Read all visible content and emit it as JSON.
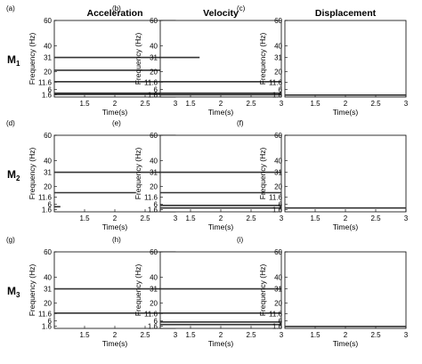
{
  "columns": [
    "Acceleration",
    "Velocity",
    "Displacement"
  ],
  "rows": [
    {
      "label": "M",
      "sub": "1"
    },
    {
      "label": "M",
      "sub": "2"
    },
    {
      "label": "M",
      "sub": "3"
    }
  ],
  "panel_letters": [
    "(a)",
    "(b)",
    "(c)",
    "(d)",
    "(e)",
    "(f)",
    "(g)",
    "(h)",
    "(i)"
  ],
  "axes": {
    "xlabel": "Time(s)",
    "ylabel": "Frequency (Hz)",
    "xlim": [
      1.0,
      3.0
    ],
    "ylim": [
      0,
      60
    ],
    "xticks": [
      1.5,
      2,
      2.5,
      3
    ],
    "xtick_labels": [
      "1.5",
      "2",
      "2.5",
      "3"
    ],
    "yticks": [
      1.6,
      6,
      11.6,
      20,
      31,
      40,
      60
    ],
    "ytick_labels": [
      "1.6",
      "6",
      "11.6",
      "20",
      "31",
      "40",
      "60"
    ]
  },
  "colors": {
    "line": "#333333",
    "axis": "#000000",
    "text": "#000000"
  },
  "chart_data": [
    {
      "panel": "(a)",
      "type": "line",
      "title": "Acceleration",
      "xlabel": "Time(s)",
      "ylabel": "Frequency (Hz)",
      "xlim": [
        1,
        3
      ],
      "ylim": [
        0,
        60
      ],
      "series": [
        {
          "values": [
            {
              "x": 1.0,
              "y": 31
            },
            {
              "x": 3.0,
              "y": 31
            }
          ]
        },
        {
          "values": [
            {
              "x": 1.0,
              "y": 21
            },
            {
              "x": 3.0,
              "y": 21
            }
          ]
        },
        {
          "values": [
            {
              "x": 1.0,
              "y": 12
            },
            {
              "x": 3.0,
              "y": 12
            }
          ]
        },
        {
          "values": [
            {
              "x": 1.0,
              "y": 3
            },
            {
              "x": 3.0,
              "y": 3
            }
          ]
        },
        {
          "values": [
            {
              "x": 1.0,
              "y": 2
            },
            {
              "x": 3.0,
              "y": 2
            }
          ]
        }
      ]
    },
    {
      "panel": "(b)",
      "type": "line",
      "title": "Velocity",
      "xlabel": "Time(s)",
      "ylabel": "Frequency (Hz)",
      "xlim": [
        1,
        3
      ],
      "ylim": [
        0,
        60
      ],
      "series": [
        {
          "values": [
            {
              "x": 1.0,
              "y": 31
            },
            {
              "x": 1.65,
              "y": 31
            }
          ]
        },
        {
          "values": [
            {
              "x": 1.0,
              "y": 12
            },
            {
              "x": 3.0,
              "y": 12
            }
          ]
        },
        {
          "values": [
            {
              "x": 1.0,
              "y": 3
            },
            {
              "x": 3.0,
              "y": 3
            }
          ]
        },
        {
          "values": [
            {
              "x": 1.0,
              "y": 1.8
            },
            {
              "x": 3.0,
              "y": 1.8
            }
          ]
        }
      ]
    },
    {
      "panel": "(c)",
      "type": "line",
      "title": "Displacement",
      "xlabel": "Time(s)",
      "ylabel": "Frequency (Hz)",
      "xlim": [
        1,
        3
      ],
      "ylim": [
        0,
        60
      ],
      "series": [
        {
          "values": [
            {
              "x": 1.0,
              "y": 1.5
            },
            {
              "x": 3.0,
              "y": 1.5
            }
          ]
        }
      ]
    },
    {
      "panel": "(d)",
      "type": "line",
      "title": "",
      "xlabel": "Time(s)",
      "ylabel": "Frequency (Hz)",
      "xlim": [
        1,
        3
      ],
      "ylim": [
        0,
        60
      ],
      "series": [
        {
          "values": [
            {
              "x": 1.0,
              "y": 31
            },
            {
              "x": 3.0,
              "y": 31
            }
          ]
        },
        {
          "values": [
            {
              "x": 1.0,
              "y": 15
            },
            {
              "x": 2.35,
              "y": 15
            }
          ]
        },
        {
          "values": [
            {
              "x": 1.0,
              "y": 4
            },
            {
              "x": 1.1,
              "y": 4
            }
          ]
        }
      ]
    },
    {
      "panel": "(e)",
      "type": "line",
      "title": "",
      "xlabel": "Time(s)",
      "ylabel": "Frequency (Hz)",
      "xlim": [
        1,
        3
      ],
      "ylim": [
        0,
        60
      ],
      "series": [
        {
          "values": [
            {
              "x": 1.0,
              "y": 31
            },
            {
              "x": 3.0,
              "y": 31
            }
          ]
        },
        {
          "values": [
            {
              "x": 1.0,
              "y": 15
            },
            {
              "x": 3.0,
              "y": 15
            }
          ]
        },
        {
          "values": [
            {
              "x": 1.0,
              "y": 5
            },
            {
              "x": 3.0,
              "y": 5
            }
          ]
        },
        {
          "values": [
            {
              "x": 1.0,
              "y": 3
            },
            {
              "x": 3.0,
              "y": 3
            }
          ]
        }
      ]
    },
    {
      "panel": "(f)",
      "type": "line",
      "title": "",
      "xlabel": "Time(s)",
      "ylabel": "Frequency (Hz)",
      "xlim": [
        1,
        3
      ],
      "ylim": [
        0,
        60
      ],
      "series": [
        {
          "values": [
            {
              "x": 1.0,
              "y": 3
            },
            {
              "x": 3.0,
              "y": 3
            }
          ]
        }
      ]
    },
    {
      "panel": "(g)",
      "type": "line",
      "title": "",
      "xlabel": "Time(s)",
      "ylabel": "Frequency (Hz)",
      "xlim": [
        1,
        3
      ],
      "ylim": [
        0,
        60
      ],
      "series": [
        {
          "values": [
            {
              "x": 1.0,
              "y": 31
            },
            {
              "x": 3.0,
              "y": 31
            }
          ]
        },
        {
          "values": [
            {
              "x": 1.0,
              "y": 12
            },
            {
              "x": 3.0,
              "y": 12
            }
          ]
        }
      ]
    },
    {
      "panel": "(h)",
      "type": "line",
      "title": "",
      "xlabel": "Time(s)",
      "ylabel": "Frequency (Hz)",
      "xlim": [
        1,
        3
      ],
      "ylim": [
        0,
        60
      ],
      "series": [
        {
          "values": [
            {
              "x": 1.0,
              "y": 31
            },
            {
              "x": 3.0,
              "y": 31
            }
          ]
        },
        {
          "values": [
            {
              "x": 1.0,
              "y": 12
            },
            {
              "x": 3.0,
              "y": 12
            }
          ]
        },
        {
          "values": [
            {
              "x": 1.0,
              "y": 5
            },
            {
              "x": 3.0,
              "y": 5
            }
          ]
        },
        {
          "values": [
            {
              "x": 1.0,
              "y": 3
            },
            {
              "x": 3.0,
              "y": 3
            }
          ]
        }
      ]
    },
    {
      "panel": "(i)",
      "type": "line",
      "title": "",
      "xlabel": "Time(s)",
      "ylabel": "Frequency (Hz)",
      "xlim": [
        1,
        3
      ],
      "ylim": [
        0,
        60
      ],
      "series": [
        {
          "values": [
            {
              "x": 1.0,
              "y": 1.5
            },
            {
              "x": 3.0,
              "y": 1.5
            }
          ]
        }
      ]
    }
  ]
}
